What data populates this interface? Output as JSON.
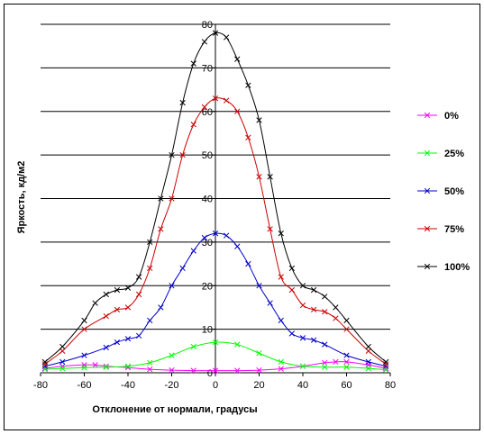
{
  "chart_data": {
    "type": "line",
    "title": "",
    "xlabel": "Отклонение от нормали, градусы",
    "ylabel": "Яркость, кд/м2",
    "xlim": [
      -80,
      80
    ],
    "ylim": [
      0,
      80
    ],
    "x_ticks": [
      "-80",
      "-60",
      "-40",
      "-20",
      "0",
      "20",
      "40",
      "60",
      "80"
    ],
    "y_ticks": [
      "0",
      "10",
      "20",
      "30",
      "40",
      "50",
      "60",
      "70",
      "80"
    ],
    "grid": "horizontal",
    "legend_position": "right",
    "series": [
      {
        "name": "0%",
        "color": "#ff00ff",
        "x": [
          -78,
          -70,
          -60,
          -55,
          -50,
          -40,
          -30,
          -20,
          -10,
          0,
          10,
          20,
          30,
          40,
          50,
          55,
          60,
          70,
          78
        ],
        "y": [
          1.0,
          1.5,
          1.8,
          1.8,
          1.5,
          1.2,
          0.8,
          0.6,
          0.5,
          0.5,
          0.5,
          0.6,
          0.9,
          1.5,
          2.3,
          2.5,
          2.5,
          1.8,
          1.0
        ]
      },
      {
        "name": "25%",
        "color": "#00ff00",
        "x": [
          -78,
          -70,
          -60,
          -50,
          -40,
          -30,
          -20,
          -10,
          0,
          10,
          20,
          30,
          40,
          50,
          60,
          70,
          78
        ],
        "y": [
          0.8,
          1.0,
          1.2,
          1.3,
          1.5,
          2.3,
          4.0,
          6.0,
          7.0,
          6.5,
          4.5,
          2.5,
          1.5,
          1.3,
          1.3,
          1.0,
          0.7
        ]
      },
      {
        "name": "50%",
        "color": "#0000cc",
        "x": [
          -78,
          -70,
          -60,
          -50,
          -45,
          -40,
          -35,
          -30,
          -25,
          -20,
          -15,
          -10,
          -5,
          0,
          5,
          10,
          15,
          20,
          25,
          30,
          35,
          40,
          45,
          50,
          60,
          70,
          78
        ],
        "y": [
          1.5,
          2.5,
          4.0,
          5.8,
          7.0,
          7.8,
          8.5,
          12.0,
          15.0,
          20.0,
          24.0,
          28.0,
          31.0,
          32.0,
          31.5,
          29.0,
          25.0,
          20.0,
          16.0,
          12.0,
          9.0,
          8.0,
          7.5,
          6.5,
          4.0,
          2.5,
          1.5
        ]
      },
      {
        "name": "75%",
        "color": "#cc0000",
        "x": [
          -78,
          -70,
          -60,
          -50,
          -45,
          -40,
          -35,
          -30,
          -25,
          -20,
          -15,
          -10,
          -5,
          0,
          5,
          10,
          15,
          20,
          25,
          30,
          35,
          40,
          45,
          50,
          55,
          60,
          70,
          78
        ],
        "y": [
          2.0,
          5.0,
          10.0,
          13.0,
          14.5,
          15.0,
          18.0,
          24.0,
          33.0,
          40.0,
          50.0,
          57.0,
          61.0,
          63.0,
          62.5,
          60.0,
          54.0,
          45.0,
          33.0,
          22.0,
          19.0,
          15.5,
          14.5,
          14.0,
          12.5,
          10.0,
          5.0,
          2.0
        ]
      },
      {
        "name": "100%",
        "color": "#000000",
        "x": [
          -78,
          -70,
          -60,
          -55,
          -50,
          -45,
          -40,
          -35,
          -30,
          -25,
          -20,
          -15,
          -10,
          -5,
          0,
          5,
          10,
          15,
          20,
          25,
          30,
          35,
          40,
          45,
          50,
          55,
          60,
          70,
          78
        ],
        "y": [
          2.5,
          6.0,
          12.0,
          16.0,
          18.0,
          19.0,
          19.5,
          22.0,
          30.0,
          40.0,
          50.0,
          62.0,
          71.0,
          76.0,
          78.0,
          77.0,
          72.0,
          66.0,
          58.0,
          45.0,
          32.0,
          24.0,
          20.0,
          19.0,
          17.5,
          15.0,
          12.0,
          6.0,
          2.5
        ]
      }
    ]
  }
}
